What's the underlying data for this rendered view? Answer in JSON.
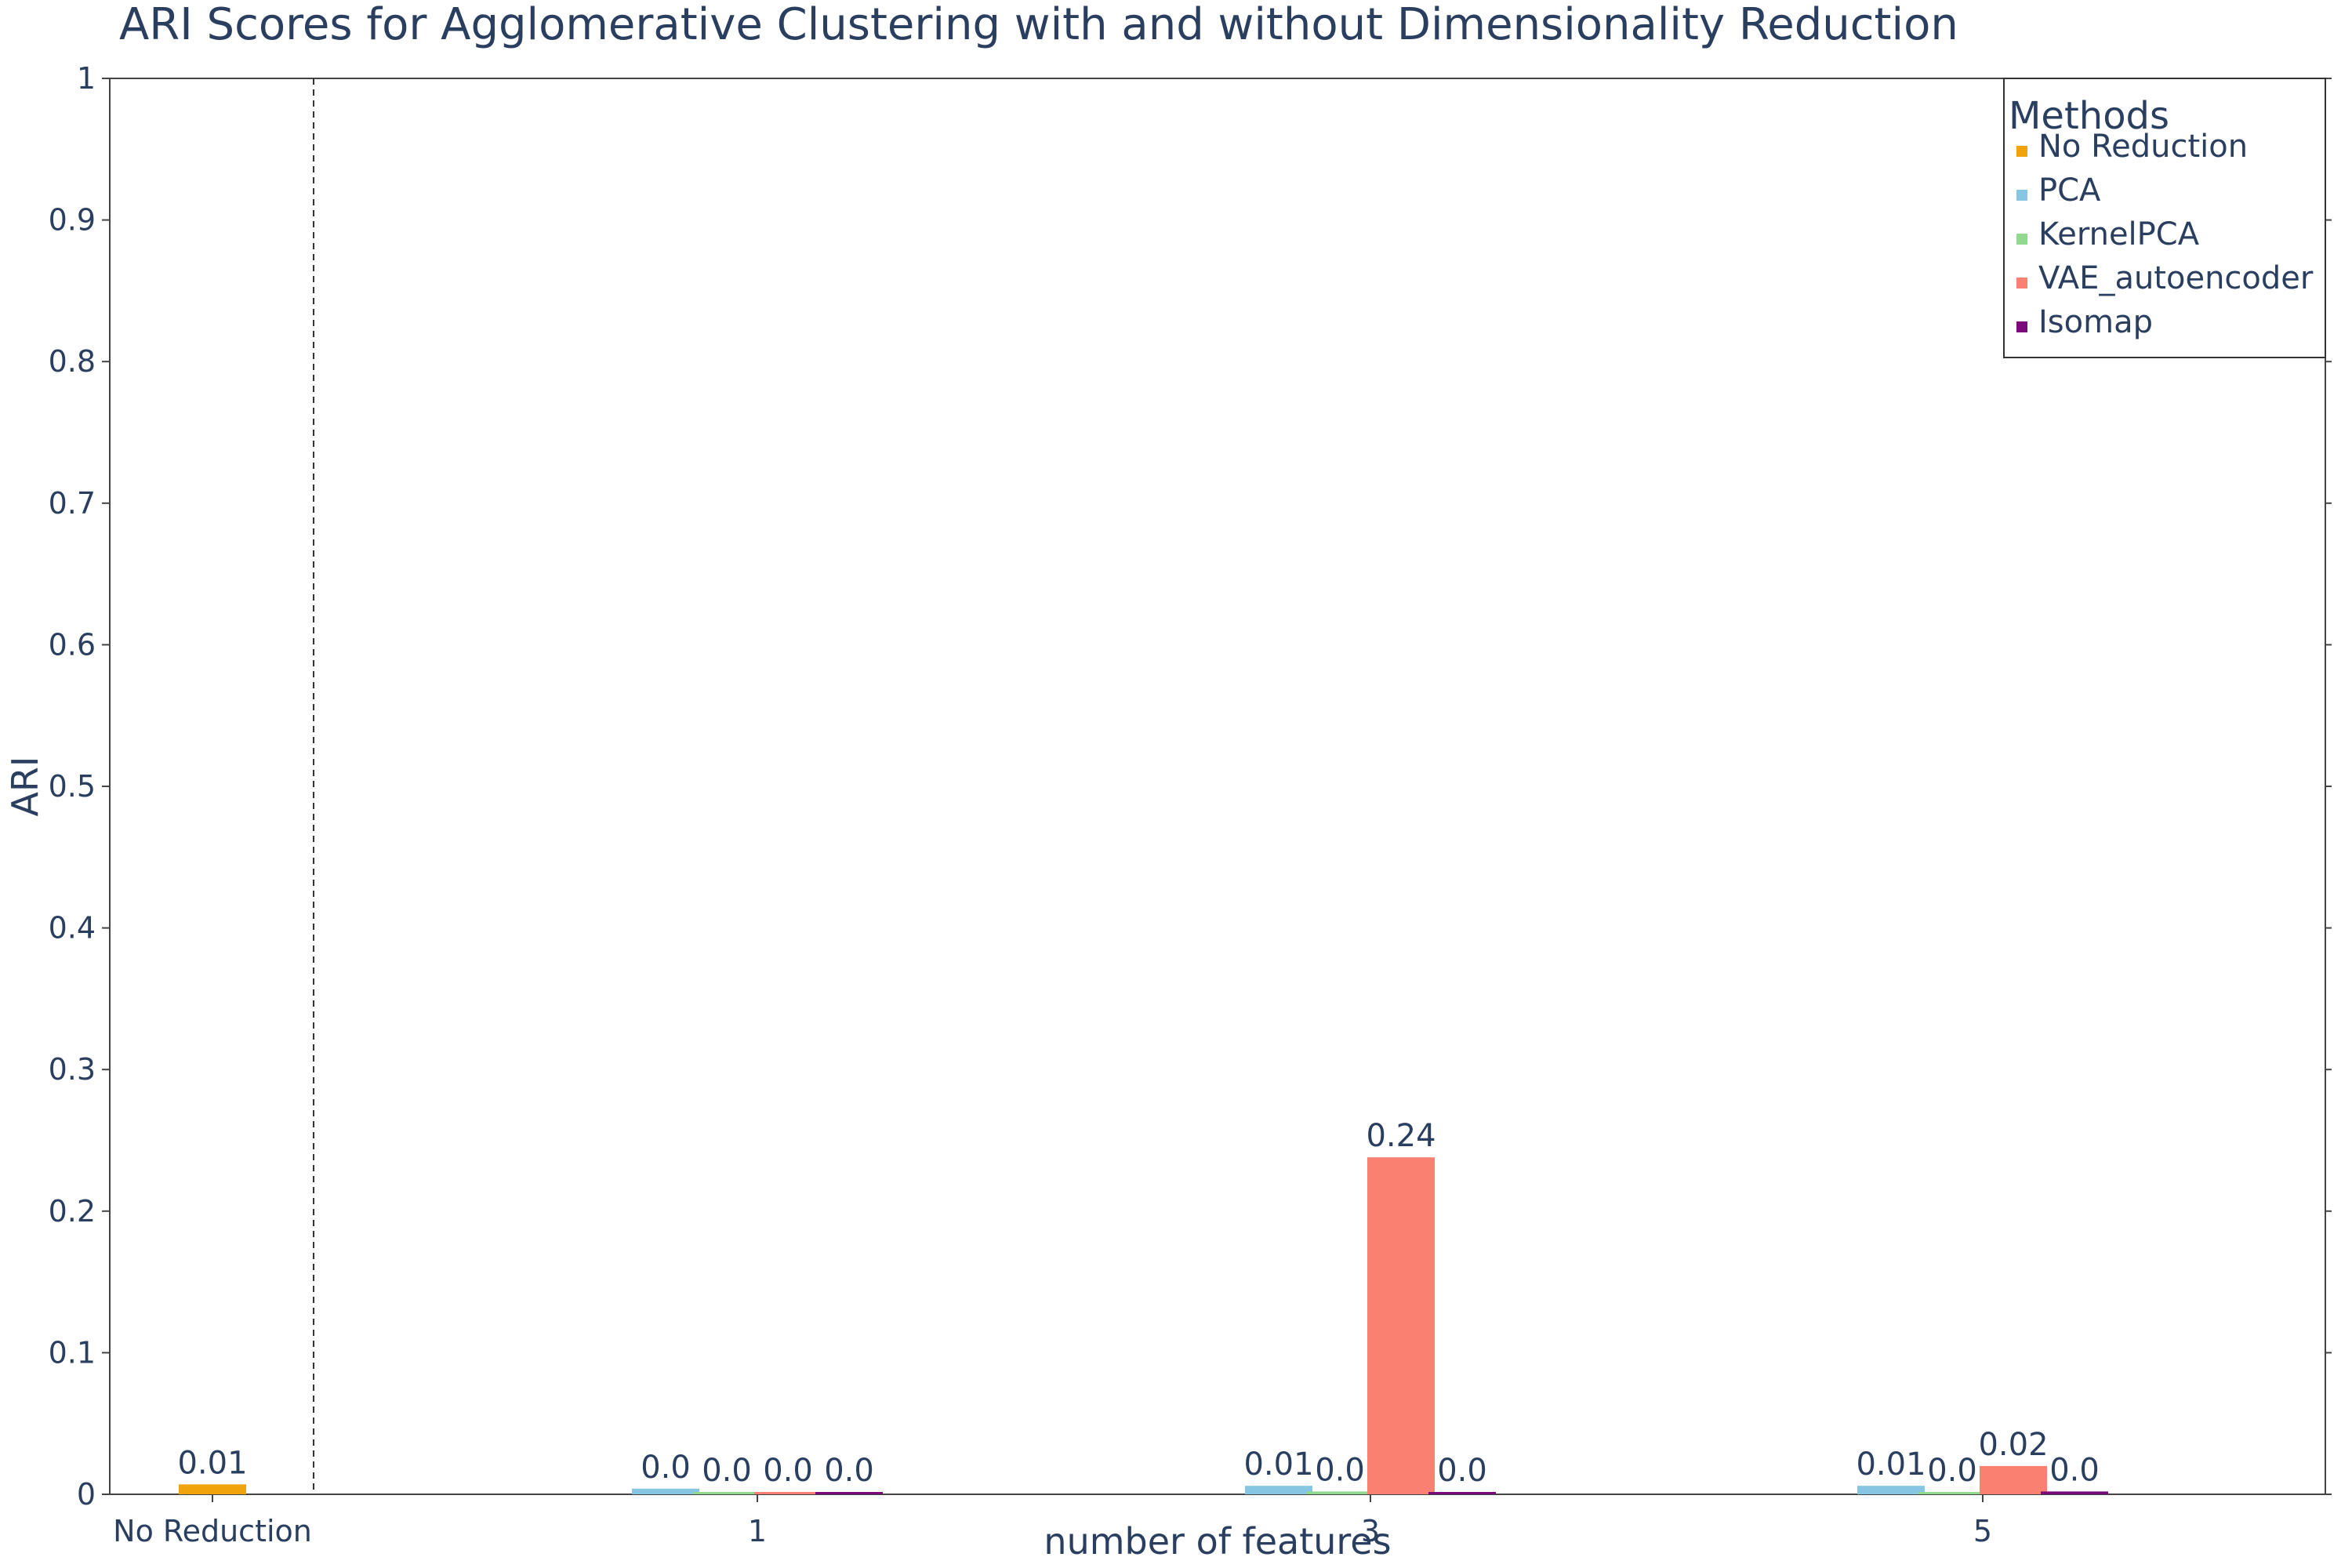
{
  "chart_data": {
    "type": "bar",
    "title": "ARI Scores for Agglomerative Clustering with and without Dimensionality Reduction",
    "xlabel": "number of features",
    "ylabel": "ARI",
    "ylim": [
      0,
      1
    ],
    "yticks": [
      "0",
      "0.1",
      "0.2",
      "0.3",
      "0.4",
      "0.5",
      "0.6",
      "0.7",
      "0.8",
      "0.9",
      "1"
    ],
    "categories": [
      "No Reduction",
      "1",
      "3",
      "5"
    ],
    "legend": {
      "title": "Methods",
      "position": "top-right"
    },
    "separator": "dashed vertical line after No Reduction",
    "series": [
      {
        "name": "No Reduction",
        "color": "#f0a30a",
        "values": [
          0.007,
          null,
          null,
          null
        ],
        "labels": [
          "0.01",
          null,
          null,
          null
        ]
      },
      {
        "name": "PCA",
        "color": "#87c6e3",
        "values": [
          null,
          0.004,
          0.006,
          0.006
        ],
        "labels": [
          null,
          "0.0",
          "0.01",
          "0.01"
        ]
      },
      {
        "name": "KernelPCA",
        "color": "#90d98f",
        "values": [
          null,
          0.0,
          0.002,
          0.0
        ],
        "labels": [
          null,
          "0.0",
          "0.0",
          "0.0"
        ]
      },
      {
        "name": "VAE_autoencoder",
        "color": "#fa8072",
        "values": [
          null,
          0.0,
          0.238,
          0.02
        ],
        "labels": [
          null,
          "0.0",
          "0.24",
          "0.02"
        ]
      },
      {
        "name": "Isomap",
        "color": "#7a0a7a",
        "values": [
          null,
          0.001,
          0.001,
          0.002
        ],
        "labels": [
          null,
          "0.0",
          "0.0",
          "0.0"
        ]
      }
    ]
  }
}
